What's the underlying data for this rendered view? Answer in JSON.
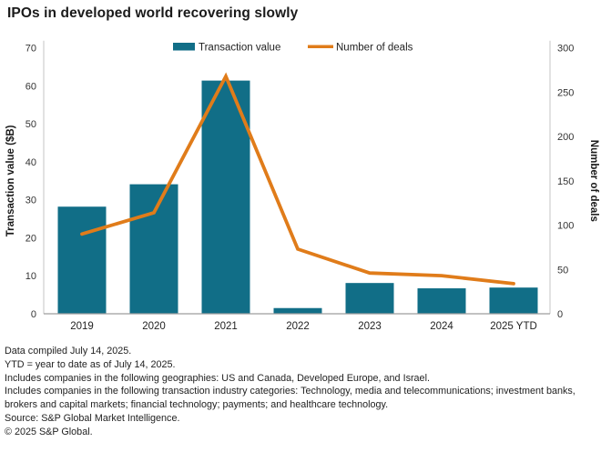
{
  "title": "IPOs in developed world recovering slowly",
  "colors": {
    "bar": "#116e87",
    "line": "#e07c1a",
    "axis_line": "#c6c6c6",
    "baseline": "#9e9e9e",
    "tick_text": "#333333",
    "title_text": "#1a1a1a",
    "footnote_text": "#222222"
  },
  "legend": {
    "items": [
      {
        "label": "Transaction value",
        "swatch": "bar-swatch",
        "color": "#116e87"
      },
      {
        "label": "Number of deals",
        "swatch": "line-swatch",
        "color": "#e07c1a"
      }
    ],
    "position": "top-center"
  },
  "chart_data": {
    "type": "bar+line combo",
    "title": "IPOs in developed world recovering slowly",
    "categories": [
      "2019",
      "2020",
      "2021",
      "2022",
      "2023",
      "2024",
      "2025 YTD"
    ],
    "series": [
      {
        "name": "Transaction value",
        "type": "bar",
        "axis": "left",
        "color": "#116e87",
        "values": [
          28.2,
          34.1,
          61.4,
          1.5,
          8.1,
          6.7,
          6.9
        ]
      },
      {
        "name": "Number of deals",
        "type": "line",
        "axis": "right",
        "color": "#e07c1a",
        "values": [
          90,
          114,
          268,
          73,
          46,
          43,
          34
        ]
      }
    ],
    "left_axis": {
      "label": "Transaction value ($B)",
      "min": 0,
      "max": 70,
      "step": 10,
      "ticks": [
        0,
        10,
        20,
        30,
        40,
        50,
        60,
        70
      ]
    },
    "right_axis": {
      "label": "Number of deals",
      "min": 0,
      "max": 300,
      "step": 50,
      "ticks": [
        0,
        50,
        100,
        150,
        200,
        250,
        300
      ]
    },
    "grid": false,
    "legend_position": "top"
  },
  "footnotes": [
    "Data compiled July 14, 2025.",
    "YTD = year to date as of July 14, 2025.",
    "Includes companies in the following geographies: US and Canada, Developed Europe, and Israel.",
    "Includes companies in the following transaction industry categories: Technology, media and telecommunications; investment banks, brokers and capital markets; financial technology; payments; and healthcare technology.",
    "Source: S&P Global Market Intelligence.",
    "© 2025 S&P Global."
  ]
}
